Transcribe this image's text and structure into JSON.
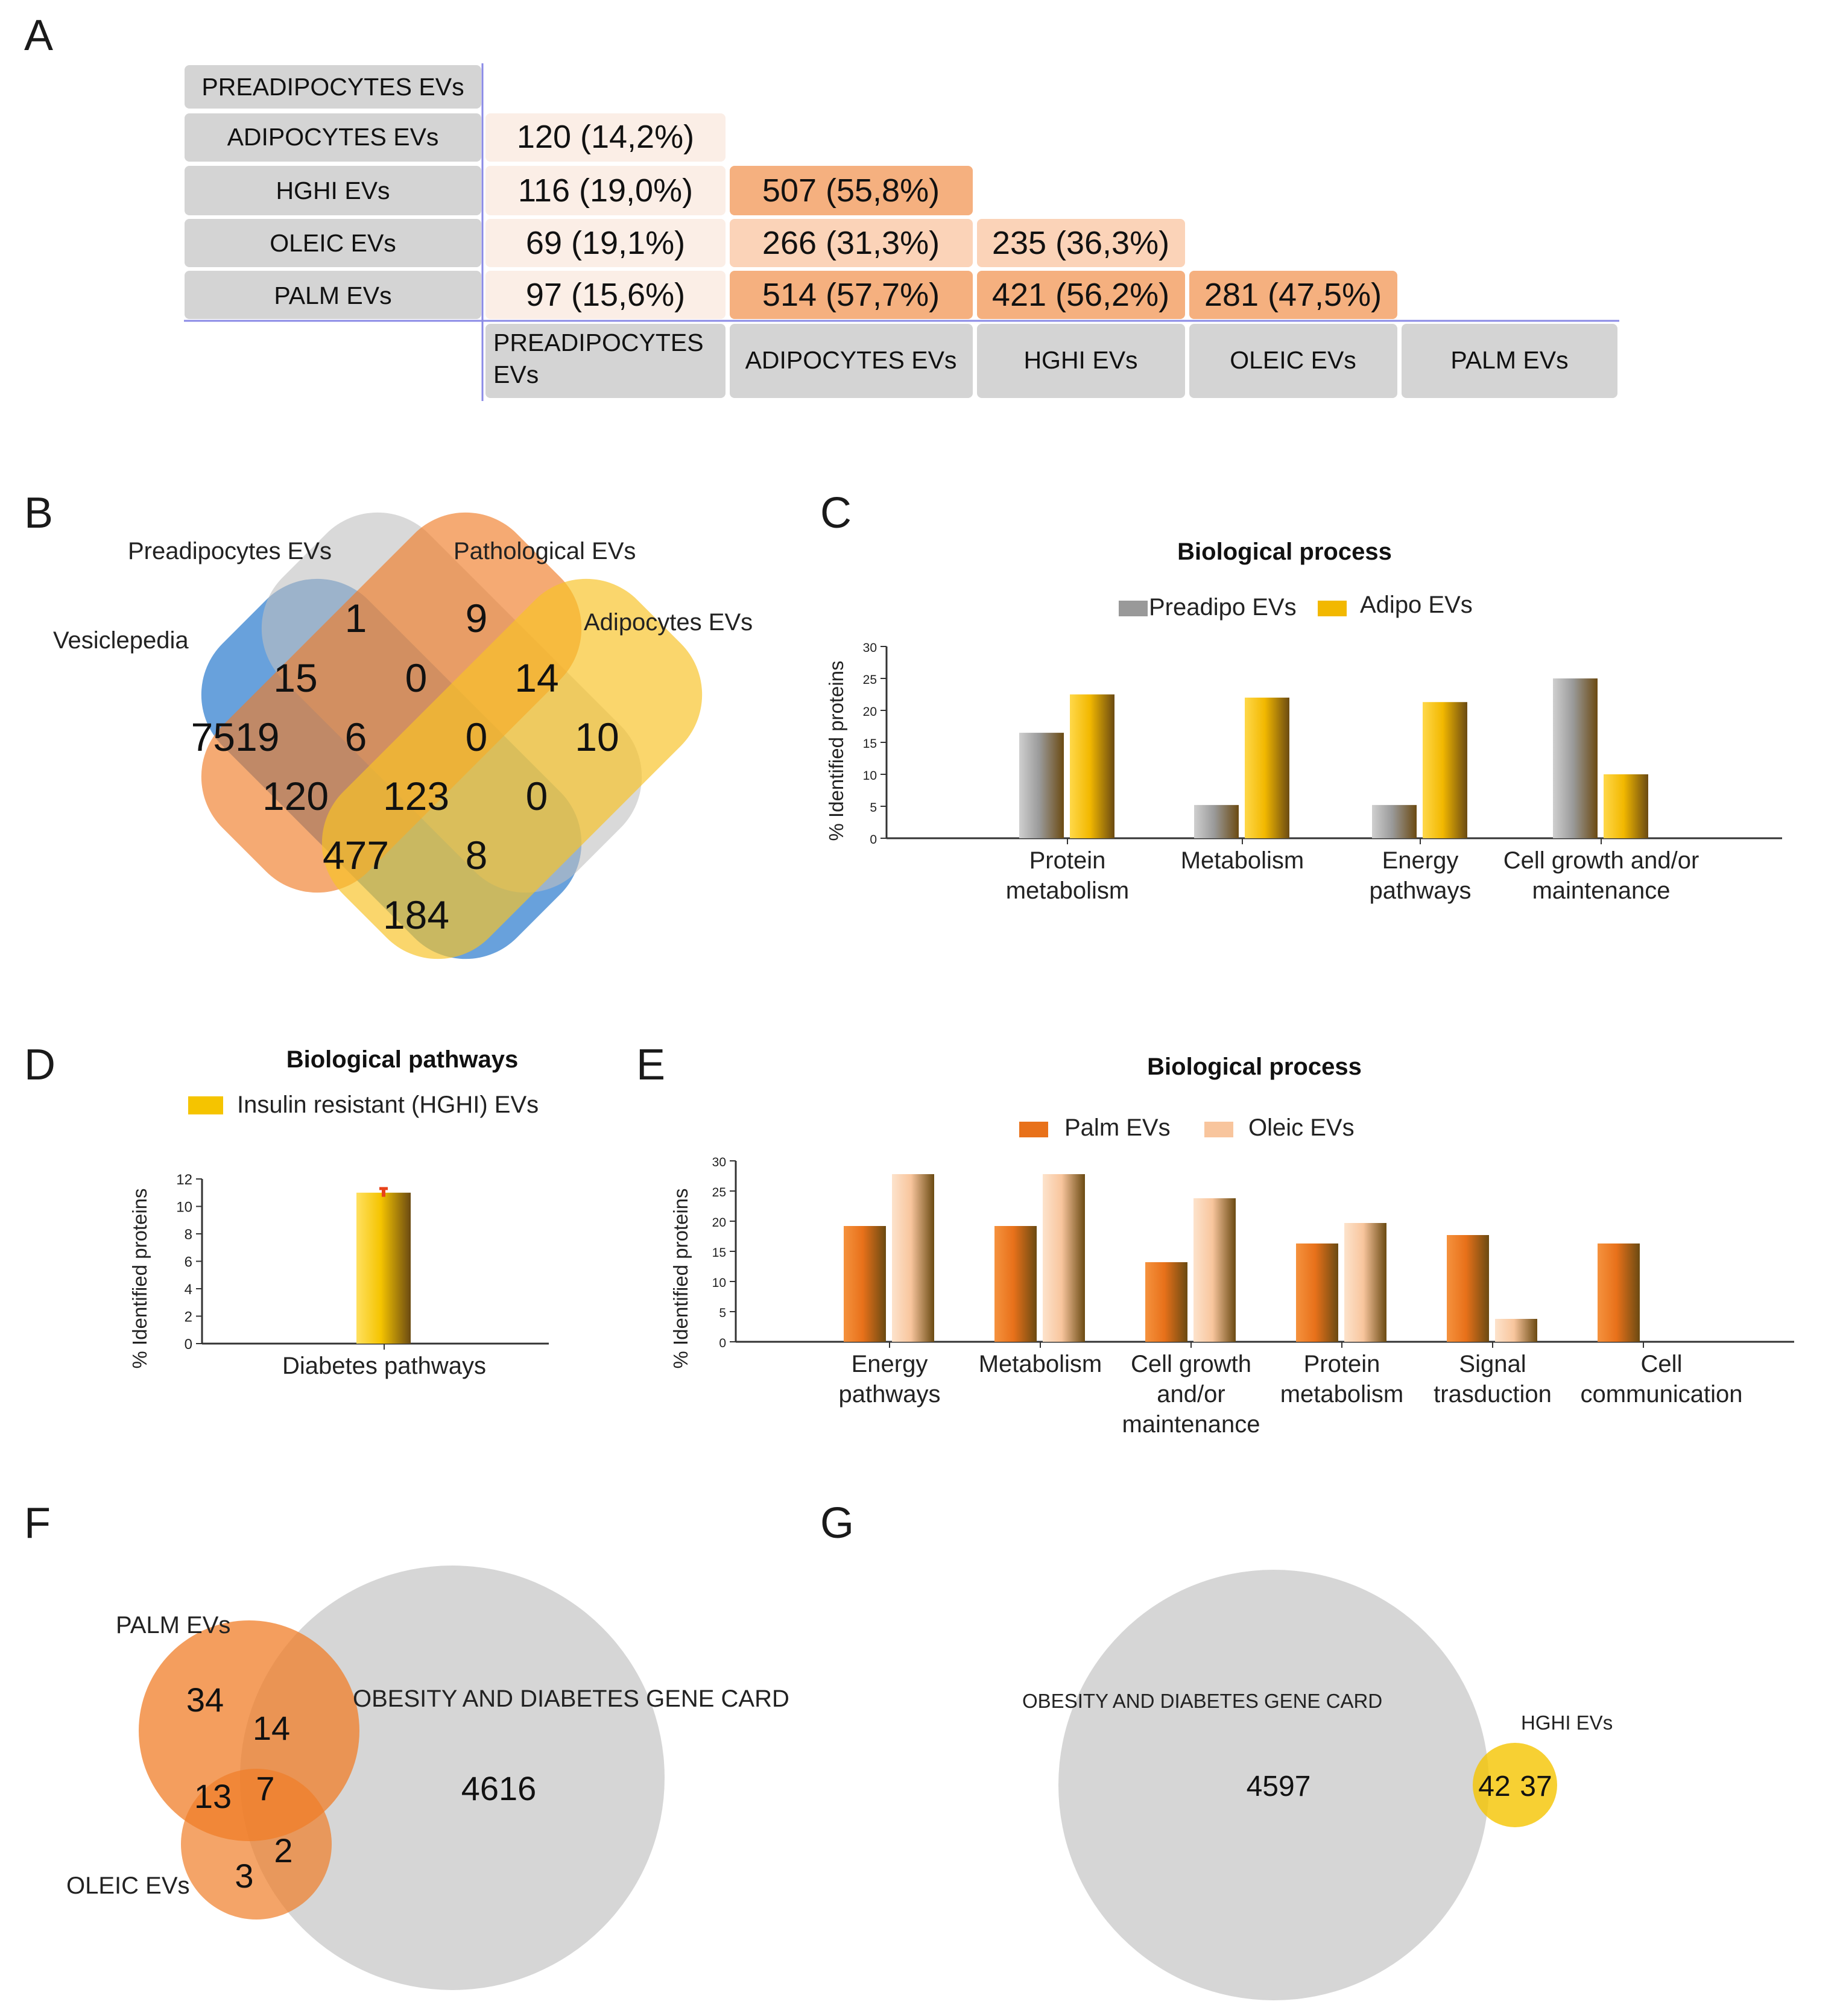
{
  "panels": {
    "a": "A",
    "b": "B",
    "c": "C",
    "d": "D",
    "e": "E",
    "f": "F",
    "g": "G"
  },
  "colors": {
    "grey_cell": "#d4d4d4",
    "light_cell": "#fbeee6",
    "mid_cell": "#fbd3b8",
    "strong_cell": "#f5b07f",
    "preadipo": "#999999",
    "adipo": "#f2b800",
    "palm": "#e8711a",
    "oleic": "#f8c59d",
    "hghi": "#f5c400",
    "venn_blue": "#4e91d6",
    "venn_grey": "#bfbfbf",
    "venn_orange": "#f07d28",
    "venn_yellow": "#f7c326",
    "gene_card": "#d6d6d6"
  },
  "panel_a": {
    "row_labels": [
      "PREADIPOCYTES EVs",
      "ADIPOCYTES EVs",
      "HGHI EVs",
      "OLEIC EVs",
      "PALM EVs"
    ],
    "col_labels": [
      "PREADIPOCYTES EVs",
      "ADIPOCYTES EVs",
      "HGHI EVs",
      "OLEIC EVs",
      "PALM EVs"
    ],
    "rows": [
      {
        "cells": []
      },
      {
        "cells": [
          {
            "text": "120 (14,2%)",
            "level": "light"
          }
        ]
      },
      {
        "cells": [
          {
            "text": "116 (19,0%)",
            "level": "light"
          },
          {
            "text": "507 (55,8%)",
            "level": "strong"
          }
        ]
      },
      {
        "cells": [
          {
            "text": "69 (19,1%)",
            "level": "light"
          },
          {
            "text": "266 (31,3%)",
            "level": "mid"
          },
          {
            "text": "235 (36,3%)",
            "level": "mid"
          }
        ]
      },
      {
        "cells": [
          {
            "text": "97 (15,6%)",
            "level": "light"
          },
          {
            "text": "514 (57,7%)",
            "level": "strong"
          },
          {
            "text": "421 (56,2%)",
            "level": "strong"
          },
          {
            "text": "281 (47,5%)",
            "level": "strong"
          }
        ]
      }
    ]
  },
  "panel_b": {
    "labels": {
      "vesiclepedia": "Vesiclepedia",
      "preadipocytes": "Preadipocytes EVs",
      "pathological": "Pathological EVs",
      "adipocytes": "Adipocytes EVs"
    },
    "counts": [
      "1",
      "9",
      "15",
      "0",
      "14",
      "7519",
      "6",
      "0",
      "10",
      "120",
      "123",
      "0",
      "477",
      "8",
      "184"
    ]
  },
  "chart_data": [
    {
      "type": "bar",
      "title": "Biological process",
      "ylabel": "% Identified proteins",
      "xlabel": "",
      "ylim": [
        0,
        30
      ],
      "yticks": [
        "0",
        "5",
        "10",
        "15",
        "20",
        "25",
        "30"
      ],
      "categories": [
        "Protein metabolism",
        "Metabolism",
        "Energy pathways",
        "Cell growth and/or maintenance"
      ],
      "series": [
        {
          "name": "Preadipo EVs",
          "values": [
            16.5,
            5.2,
            5.2,
            25.0
          ]
        },
        {
          "name": "Adipo EVs",
          "values": [
            22.5,
            22.0,
            21.3,
            10.0
          ]
        }
      ],
      "legend": "top-center"
    },
    {
      "type": "bar",
      "title": "Biological pathways",
      "ylabel": "% Identified proteins",
      "xlabel": "",
      "ylim": [
        0,
        12
      ],
      "yticks": [
        "0",
        "2",
        "4",
        "6",
        "8",
        "10",
        "12"
      ],
      "categories": [
        "Diabetes pathways"
      ],
      "series": [
        {
          "name": "Insulin resistant (HGHI) EVs",
          "values": [
            11.0
          ],
          "error": [
            0.3
          ]
        }
      ],
      "legend": "top-center"
    },
    {
      "type": "bar",
      "title": "Biological process",
      "ylabel": "% Identified proteins",
      "xlabel": "",
      "ylim": [
        0,
        30
      ],
      "yticks": [
        "0",
        "5",
        "10",
        "15",
        "20",
        "25",
        "30"
      ],
      "categories": [
        "Energy pathways",
        "Metabolism",
        "Cell growth and/or maintenance",
        "Protein metabolism",
        "Signal trasduction",
        "Cell communication"
      ],
      "series": [
        {
          "name": "Palm EVs",
          "values": [
            19.2,
            19.2,
            13.2,
            16.3,
            17.7,
            16.3
          ]
        },
        {
          "name": "Oleic EVs",
          "values": [
            27.8,
            27.8,
            23.8,
            19.7,
            3.8,
            0
          ]
        }
      ],
      "legend": "top-center"
    }
  ],
  "chart_c": {
    "title": "Biological process",
    "ylabel": "% Identified proteins",
    "legend": [
      "Preadipo EVs",
      "Adipo EVs"
    ],
    "ticks": [
      "0",
      "5",
      "10",
      "15",
      "20",
      "25",
      "30"
    ],
    "cat_lines": [
      [
        "Protein",
        "metabolism"
      ],
      [
        "Metabolism"
      ],
      [
        "Energy",
        "pathways"
      ],
      [
        "Cell growth and/or",
        "maintenance"
      ]
    ]
  },
  "chart_d": {
    "title": "Biological pathways",
    "ylabel": "% Identified proteins",
    "legend": [
      "Insulin resistant (HGHI) EVs"
    ],
    "ticks": [
      "0",
      "2",
      "4",
      "6",
      "8",
      "10",
      "12"
    ],
    "cat_lines": [
      [
        "Diabetes pathways"
      ]
    ]
  },
  "chart_e": {
    "title": "Biological process",
    "ylabel": "% Identified proteins",
    "legend": [
      "Palm EVs",
      "Oleic EVs"
    ],
    "ticks": [
      "0",
      "5",
      "10",
      "15",
      "20",
      "25",
      "30"
    ],
    "cat_lines": [
      [
        "Energy",
        "pathways"
      ],
      [
        "Metabolism"
      ],
      [
        "Cell growth",
        "and/or",
        "maintenance"
      ],
      [
        "Protein",
        "metabolism"
      ],
      [
        "Signal",
        "trasduction"
      ],
      [
        "Cell",
        "communication"
      ]
    ]
  },
  "panel_f": {
    "labels": {
      "palm": "PALM EVs",
      "oleic": "OLEIC EVs",
      "gene_card": "OBESITY AND DIABETES GENE CARD"
    },
    "counts": [
      "34",
      "14",
      "13",
      "7",
      "2",
      "3",
      "4616"
    ]
  },
  "panel_g": {
    "labels": {
      "gene_card": "OBESITY AND DIABETES GENE CARD",
      "hghi": "HGHI EVs"
    },
    "counts": [
      "4597",
      "42",
      "37"
    ]
  }
}
